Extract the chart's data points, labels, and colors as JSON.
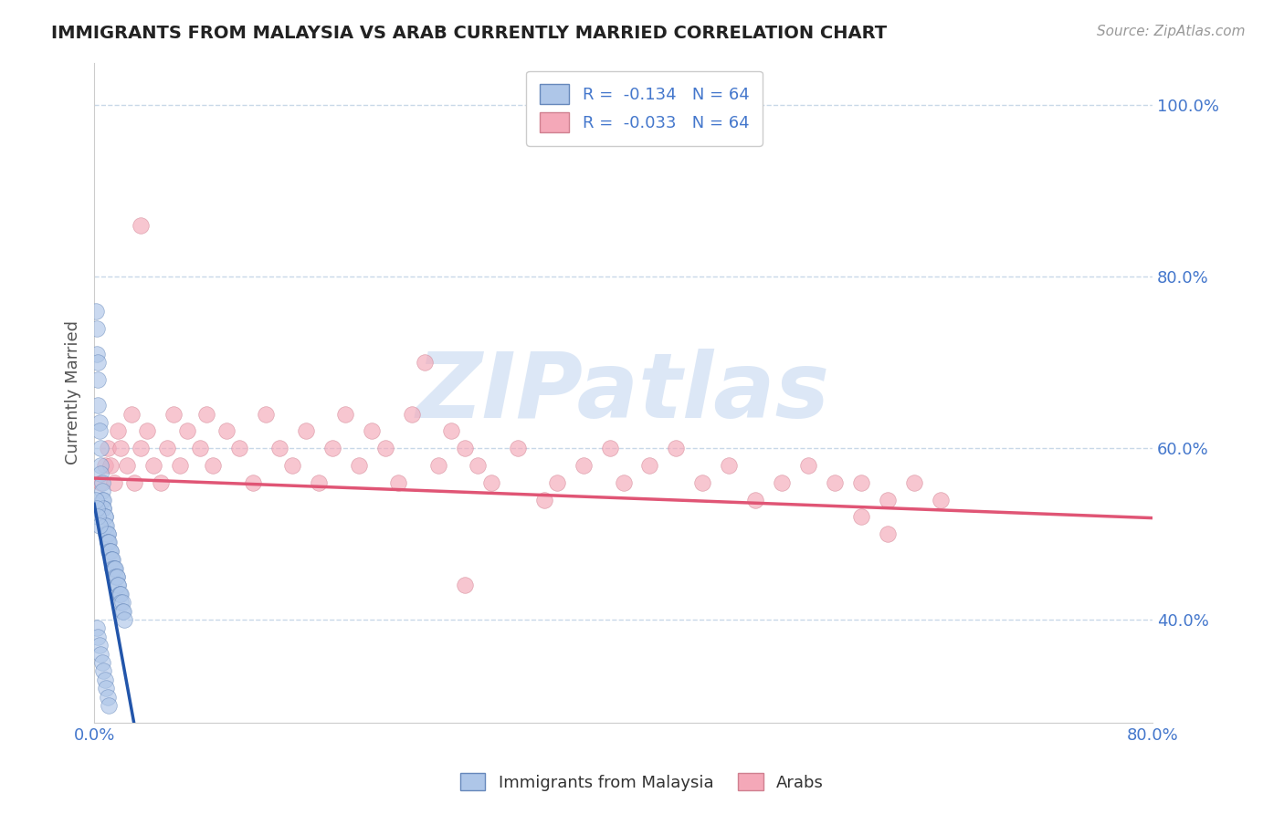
{
  "title": "IMMIGRANTS FROM MALAYSIA VS ARAB CURRENTLY MARRIED CORRELATION CHART",
  "source": "Source: ZipAtlas.com",
  "xlabel": "",
  "ylabel": "Currently Married",
  "legend_labels": [
    "Immigrants from Malaysia",
    "Arabs"
  ],
  "r_malaysia": -0.134,
  "r_arab": -0.033,
  "n_malaysia": 64,
  "n_arab": 64,
  "color_malaysia": "#aec6e8",
  "color_arab": "#f4a8b8",
  "color_malaysia_line": "#2255aa",
  "color_arab_line": "#e05575",
  "xlim": [
    0.0,
    0.8
  ],
  "ylim": [
    0.28,
    1.05
  ],
  "xticks": [
    0.0,
    0.8
  ],
  "yticks": [
    0.4,
    0.6,
    0.8,
    1.0
  ],
  "xticklabels": [
    "0.0%",
    "80.0%"
  ],
  "yticklabels": [
    "40.0%",
    "60.0%",
    "80.0%",
    "100.0%"
  ],
  "malaysia_x": [
    0.001,
    0.002,
    0.002,
    0.003,
    0.003,
    0.003,
    0.004,
    0.004,
    0.005,
    0.005,
    0.005,
    0.006,
    0.006,
    0.006,
    0.007,
    0.007,
    0.007,
    0.008,
    0.008,
    0.008,
    0.009,
    0.009,
    0.01,
    0.01,
    0.01,
    0.01,
    0.011,
    0.011,
    0.012,
    0.012,
    0.013,
    0.013,
    0.014,
    0.014,
    0.015,
    0.015,
    0.016,
    0.016,
    0.017,
    0.017,
    0.018,
    0.018,
    0.019,
    0.019,
    0.02,
    0.02,
    0.021,
    0.021,
    0.022,
    0.023,
    0.002,
    0.003,
    0.004,
    0.005,
    0.006,
    0.007,
    0.008,
    0.009,
    0.01,
    0.011,
    0.001,
    0.002,
    0.003,
    0.004
  ],
  "malaysia_y": [
    0.76,
    0.74,
    0.71,
    0.7,
    0.68,
    0.65,
    0.63,
    0.62,
    0.6,
    0.58,
    0.57,
    0.56,
    0.55,
    0.54,
    0.54,
    0.53,
    0.53,
    0.52,
    0.52,
    0.51,
    0.51,
    0.5,
    0.5,
    0.5,
    0.49,
    0.49,
    0.49,
    0.48,
    0.48,
    0.48,
    0.47,
    0.47,
    0.47,
    0.46,
    0.46,
    0.46,
    0.46,
    0.45,
    0.45,
    0.45,
    0.44,
    0.44,
    0.43,
    0.43,
    0.43,
    0.42,
    0.42,
    0.41,
    0.41,
    0.4,
    0.39,
    0.38,
    0.37,
    0.36,
    0.35,
    0.34,
    0.33,
    0.32,
    0.31,
    0.3,
    0.54,
    0.53,
    0.52,
    0.51
  ],
  "arab_x": [
    0.005,
    0.008,
    0.01,
    0.012,
    0.015,
    0.018,
    0.02,
    0.025,
    0.028,
    0.03,
    0.035,
    0.04,
    0.045,
    0.05,
    0.055,
    0.06,
    0.065,
    0.07,
    0.08,
    0.085,
    0.09,
    0.1,
    0.11,
    0.12,
    0.13,
    0.14,
    0.15,
    0.16,
    0.17,
    0.18,
    0.19,
    0.2,
    0.21,
    0.22,
    0.23,
    0.24,
    0.25,
    0.26,
    0.27,
    0.28,
    0.29,
    0.3,
    0.32,
    0.34,
    0.35,
    0.37,
    0.39,
    0.4,
    0.42,
    0.44,
    0.46,
    0.48,
    0.5,
    0.52,
    0.54,
    0.56,
    0.58,
    0.6,
    0.62,
    0.64,
    0.58,
    0.6,
    0.035,
    0.28
  ],
  "arab_y": [
    0.56,
    0.58,
    0.6,
    0.58,
    0.56,
    0.62,
    0.6,
    0.58,
    0.64,
    0.56,
    0.6,
    0.62,
    0.58,
    0.56,
    0.6,
    0.64,
    0.58,
    0.62,
    0.6,
    0.64,
    0.58,
    0.62,
    0.6,
    0.56,
    0.64,
    0.6,
    0.58,
    0.62,
    0.56,
    0.6,
    0.64,
    0.58,
    0.62,
    0.6,
    0.56,
    0.64,
    0.7,
    0.58,
    0.62,
    0.6,
    0.58,
    0.56,
    0.6,
    0.54,
    0.56,
    0.58,
    0.6,
    0.56,
    0.58,
    0.6,
    0.56,
    0.58,
    0.54,
    0.56,
    0.58,
    0.56,
    0.56,
    0.54,
    0.56,
    0.54,
    0.52,
    0.5,
    0.86,
    0.44
  ],
  "malaysia_trend_x0": 0.0,
  "malaysia_trend_y0": 0.535,
  "malaysia_trend_slope": -8.5,
  "malaysia_trend_xend": 0.065,
  "arab_trend_x0": 0.0,
  "arab_trend_y0": 0.565,
  "arab_trend_slope": -0.058,
  "arab_trend_xend": 0.8,
  "watermark_text": "ZIPatlas",
  "watermark_color": "#c5d8f0",
  "watermark_alpha": 0.6
}
